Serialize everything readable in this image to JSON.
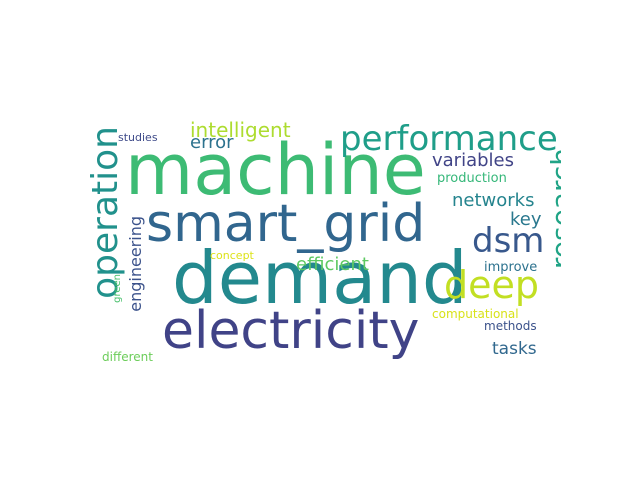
{
  "words": {
    "machine": {
      "text": "machine",
      "color": "#3dbb74"
    },
    "demand": {
      "text": "demand",
      "color": "#23898e"
    },
    "smart_grid": {
      "text": "smart_grid",
      "color": "#31668e"
    },
    "electricity": {
      "text": "electricity",
      "color": "#404387"
    },
    "operation": {
      "text": "operation",
      "color": "#21918c"
    },
    "performance": {
      "text": "performance",
      "color": "#1f9e89"
    },
    "deep": {
      "text": "deep",
      "color": "#c2df23"
    },
    "dsm": {
      "text": "dsm",
      "color": "#38588c"
    },
    "research": {
      "text": "research",
      "color": "#20a486"
    },
    "intelligent": {
      "text": "intelligent",
      "color": "#addc30"
    },
    "error": {
      "text": "error",
      "color": "#2c728e"
    },
    "variables": {
      "text": "variables",
      "color": "#414487"
    },
    "networks": {
      "text": "networks",
      "color": "#25848e"
    },
    "engineering": {
      "text": "engineering",
      "color": "#3b528b"
    },
    "efficient": {
      "text": "efficient",
      "color": "#5ec962"
    },
    "key": {
      "text": "key",
      "color": "#2a788e"
    },
    "tasks": {
      "text": "tasks",
      "color": "#31688e"
    },
    "production": {
      "text": "production",
      "color": "#35b779"
    },
    "improve": {
      "text": "improve",
      "color": "#2c728e"
    },
    "computational": {
      "text": "computational",
      "color": "#d8e219"
    },
    "methods": {
      "text": "methods",
      "color": "#3b528b"
    },
    "studies": {
      "text": "studies",
      "color": "#3e4a89"
    },
    "concept": {
      "text": "concept",
      "color": "#dde318"
    },
    "green": {
      "text": "green",
      "color": "#4ac16d"
    },
    "different": {
      "text": "different",
      "color": "#6ccd5a"
    }
  }
}
